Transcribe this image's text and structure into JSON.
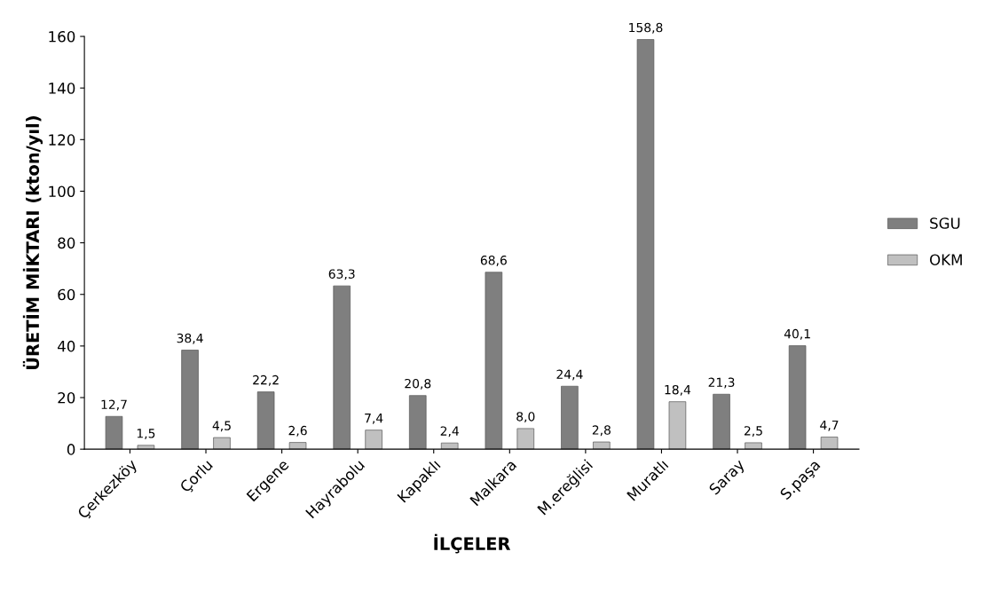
{
  "chart_data": {
    "type": "bar",
    "xlabel": "İLÇELER",
    "ylabel": "ÜRETİM MİKTARI (kton/yıl)",
    "categories": [
      "Çerkezköy",
      "Çorlu",
      "Ergene",
      "Hayrabolu",
      "Kapaklı",
      "Malkara",
      "M.ereğlisi",
      "Muratlı",
      "Saray",
      "S.paşa"
    ],
    "series": [
      {
        "name": "SGU",
        "color": "#7f7f7f",
        "values": [
          12.7,
          38.4,
          22.2,
          63.3,
          20.8,
          68.6,
          24.4,
          158.8,
          21.3,
          40.1
        ],
        "value_labels": [
          "12,7",
          "38,4",
          "22,2",
          "63,3",
          "20,8",
          "68,6",
          "24,4",
          "158,8",
          "21,3",
          "40,1"
        ]
      },
      {
        "name": "OKM",
        "color": "#c0c0c0",
        "values": [
          1.5,
          4.5,
          2.6,
          7.4,
          2.4,
          8.0,
          2.8,
          18.4,
          2.5,
          4.7
        ],
        "value_labels": [
          "1,5",
          "4,5",
          "2,6",
          "7,4",
          "2,4",
          "8,0",
          "2,8",
          "18,4",
          "2,5",
          "4,7"
        ]
      }
    ],
    "ylim": [
      0,
      160
    ],
    "yticks": [
      0,
      20,
      40,
      60,
      80,
      100,
      120,
      140,
      160
    ],
    "grid": false,
    "legend": "right"
  }
}
